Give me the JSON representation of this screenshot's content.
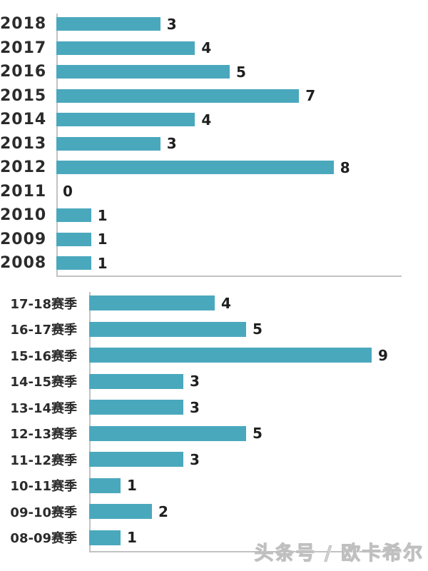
{
  "colors": {
    "bar": "#4AA8BD",
    "label_text": "#2B2B2B",
    "value_text": "#1F1F1F",
    "axis": "#C2C2C2",
    "watermark": "#D4D4D4"
  },
  "watermark": {
    "text": "头条号 / 欧卡希尔"
  },
  "chart_data": [
    {
      "type": "bar",
      "orientation": "horizontal",
      "title": "",
      "xlabel": "",
      "ylabel": "",
      "categories": [
        "2018",
        "2017",
        "2016",
        "2015",
        "2014",
        "2013",
        "2012",
        "2011",
        "2010",
        "2009",
        "2008"
      ],
      "values": [
        3,
        4,
        5,
        7,
        4,
        3,
        8,
        0,
        1,
        1,
        1
      ],
      "xlim": [
        0,
        8
      ],
      "value_labels": true,
      "grid": false,
      "legend": false
    },
    {
      "type": "bar",
      "orientation": "horizontal",
      "title": "",
      "xlabel": "",
      "ylabel": "",
      "categories": [
        "17-18赛季",
        "16-17赛季",
        "15-16赛季",
        "14-15赛季",
        "13-14赛季",
        "12-13赛季",
        "11-12赛季",
        "10-11赛季",
        "09-10赛季",
        "08-09赛季"
      ],
      "values": [
        4,
        5,
        9,
        3,
        3,
        5,
        3,
        1,
        2,
        1
      ],
      "xlim": [
        0,
        9
      ],
      "value_labels": true,
      "grid": false,
      "legend": false
    }
  ]
}
